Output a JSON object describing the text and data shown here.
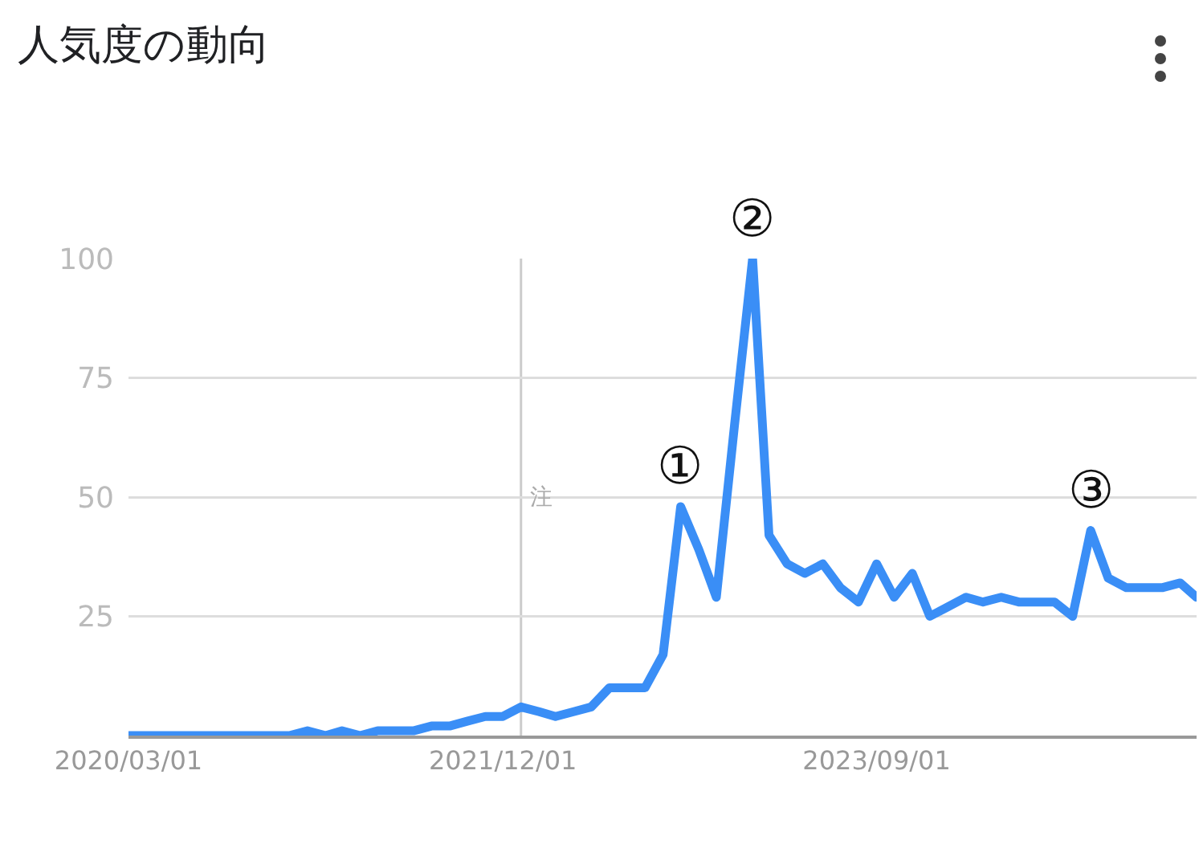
{
  "chart_data": {
    "type": "line",
    "title": "人気度の動向",
    "x": [
      "2020-03",
      "2020-04",
      "2020-05",
      "2020-06",
      "2020-07",
      "2020-08",
      "2020-09",
      "2020-10",
      "2020-11",
      "2020-12",
      "2021-01",
      "2021-02",
      "2021-03",
      "2021-04",
      "2021-05",
      "2021-06",
      "2021-07",
      "2021-08",
      "2021-09",
      "2021-10",
      "2021-11",
      "2021-12",
      "2022-01",
      "2022-02",
      "2022-03",
      "2022-04",
      "2022-05",
      "2022-06",
      "2022-07",
      "2022-08",
      "2022-09",
      "2022-10",
      "2022-11",
      "2022-12",
      "2023-01",
      "2023-02",
      "2023-03",
      "2023-04",
      "2023-05",
      "2023-06",
      "2023-07",
      "2023-08",
      "2023-09",
      "2023-10",
      "2023-11",
      "2023-12",
      "2024-01",
      "2024-02",
      "2024-03",
      "2024-04",
      "2024-05",
      "2024-06",
      "2024-07",
      "2024-08",
      "2024-09",
      "2024-10",
      "2024-11",
      "2024-12",
      "2025-01",
      "2025-02",
      "2025-03"
    ],
    "series": [
      {
        "color": "#3a8ef6",
        "values": [
          0,
          0,
          0,
          0,
          0,
          0,
          0,
          0,
          0,
          0,
          1,
          0,
          1,
          0,
          1,
          1,
          1,
          2,
          2,
          3,
          4,
          4,
          6,
          5,
          4,
          5,
          6,
          10,
          10,
          10,
          17,
          48,
          39,
          29,
          65,
          100,
          42,
          36,
          34,
          36,
          31,
          28,
          36,
          29,
          34,
          25,
          27,
          29,
          28,
          29,
          28,
          28,
          28,
          25,
          43,
          33,
          31,
          31,
          31,
          32,
          29
        ]
      }
    ],
    "xlim": [
      "2020-03",
      "2025-03"
    ],
    "xticks": [
      {
        "value": "2020-03-01",
        "label": "2020/03/01"
      },
      {
        "value": "2021-12-01",
        "label": "2021/12/01"
      },
      {
        "value": "2023-09-01",
        "label": "2023/09/01"
      }
    ],
    "ylim": [
      0,
      100
    ],
    "yticks": [
      {
        "value": 0,
        "label": null
      },
      25,
      50,
      75,
      100
    ],
    "grid": "y",
    "marker": "none",
    "line_style": "solid",
    "ref_lines": [
      {
        "axis": "x",
        "value": "2022-01",
        "label": "注",
        "color": "#cccccc"
      }
    ],
    "annotations": [
      {
        "text": "①",
        "x": "2022-10",
        "y": 48
      },
      {
        "text": "②",
        "x": "2023-02",
        "y": 100
      },
      {
        "text": "③",
        "x": "2024-09",
        "y": 43
      }
    ]
  }
}
